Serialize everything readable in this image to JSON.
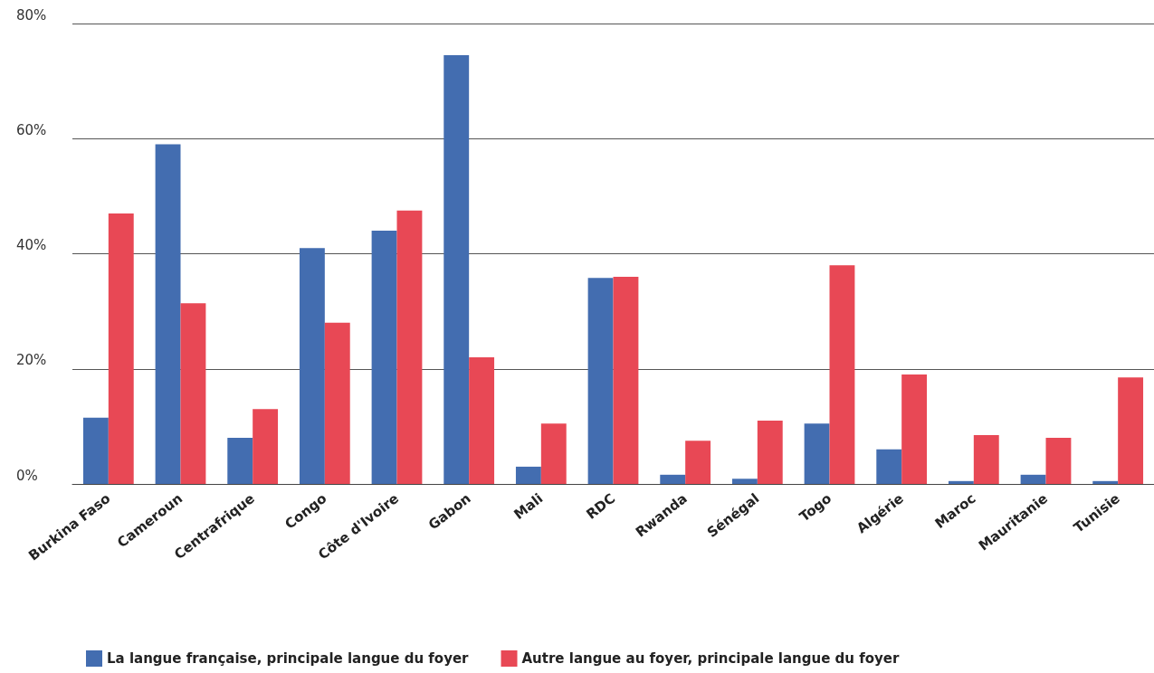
{
  "chart_data": {
    "type": "bar",
    "categories": [
      "Burkina Faso",
      "Cameroun",
      "Centrafrique",
      "Congo",
      "Côte d'Ivoire",
      "Gabon",
      "Mali",
      "RDC",
      "Rwanda",
      "Sénégal",
      "Togo",
      "Algérie",
      "Maroc",
      "Mauritanie",
      "Tunisie"
    ],
    "series": [
      {
        "name": "La langue française, principale langue du foyer",
        "color": "#436db0",
        "values": [
          11.5,
          59,
          8,
          41,
          44,
          74.5,
          3,
          35.8,
          1.6,
          0.9,
          10.5,
          6,
          0.5,
          1.6,
          0.5
        ]
      },
      {
        "name": "Autre langue au foyer, principale langue du foyer",
        "color": "#e84855",
        "values": [
          47,
          31.4,
          13,
          28,
          47.5,
          22,
          10.5,
          36,
          7.5,
          11,
          38,
          19,
          8.5,
          8,
          18.5
        ]
      }
    ],
    "ylim": [
      0,
      80
    ],
    "yticks": [
      {
        "value": 0,
        "label": "0%"
      },
      {
        "value": 20,
        "label": "20%"
      },
      {
        "value": 40,
        "label": "40%"
      },
      {
        "value": 60,
        "label": "60%"
      },
      {
        "value": 80,
        "label": "80%"
      }
    ],
    "grid": "y",
    "legend": "bottom left"
  }
}
